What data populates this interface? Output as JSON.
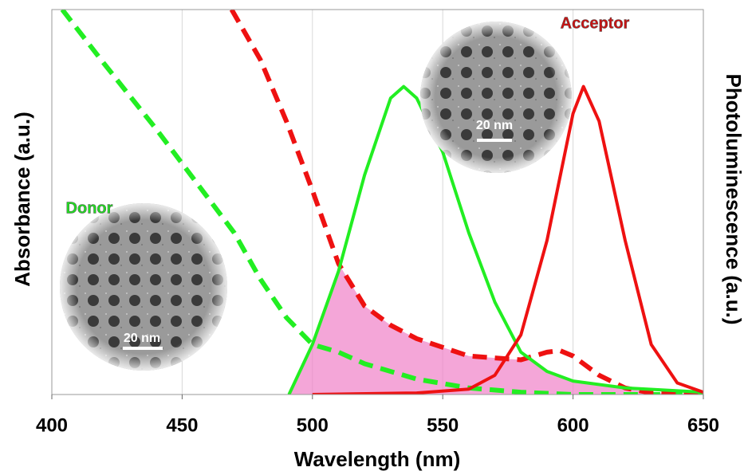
{
  "chart_data": {
    "type": "line",
    "x_label": "Wavelength (nm)",
    "y_label": "Absorbance (a.u.)",
    "y2_label": "Photoluminescence (a.u.)",
    "xlim": [
      400,
      650
    ],
    "ylim": [
      0,
      1
    ],
    "xticks": [
      400,
      450,
      500,
      550,
      600,
      650
    ],
    "grid": true,
    "series": [
      {
        "color": "#22ee22",
        "style": "dashed",
        "x": [
          404,
          420,
          440,
          460,
          470,
          480,
          490,
          500,
          510,
          520,
          540,
          560,
          580,
          600,
          650
        ],
        "values": [
          1.0,
          0.86,
          0.69,
          0.51,
          0.42,
          0.3,
          0.2,
          0.13,
          0.11,
          0.08,
          0.04,
          0.017,
          0.006,
          0,
          0
        ]
      },
      {
        "color": "#ee1111",
        "style": "dashed",
        "x": [
          469,
          480,
          490,
          500,
          510,
          520,
          530,
          540,
          560,
          580,
          590,
          595,
          600,
          610,
          620,
          630,
          650
        ],
        "values": [
          1.0,
          0.87,
          0.71,
          0.53,
          0.34,
          0.23,
          0.18,
          0.145,
          0.1,
          0.09,
          0.11,
          0.114,
          0.1,
          0.05,
          0.017,
          0.004,
          0
        ]
      },
      {
        "color": "#22ee22",
        "style": "solid",
        "x": [
          491,
          500,
          510,
          520,
          530,
          535,
          540,
          550,
          560,
          570,
          580,
          590,
          600,
          620,
          650
        ],
        "values": [
          0,
          0.13,
          0.32,
          0.57,
          0.77,
          0.8,
          0.77,
          0.63,
          0.42,
          0.24,
          0.11,
          0.06,
          0.035,
          0.017,
          0.006
        ]
      },
      {
        "color": "#ee1111",
        "style": "solid",
        "x": [
          500,
          540,
          560,
          570,
          580,
          590,
          600,
          604,
          610,
          620,
          630,
          640,
          650
        ],
        "values": [
          0,
          0.004,
          0.014,
          0.05,
          0.155,
          0.4,
          0.73,
          0.8,
          0.71,
          0.4,
          0.13,
          0.03,
          0.006
        ]
      }
    ],
    "overlap": {
      "series": [
        2,
        1
      ],
      "color": "#f080c8"
    },
    "annotations": {
      "donor": "Donor",
      "acceptor": "Acceptor",
      "donor_scale": "20 nm",
      "acceptor_scale": "20 nm"
    }
  }
}
